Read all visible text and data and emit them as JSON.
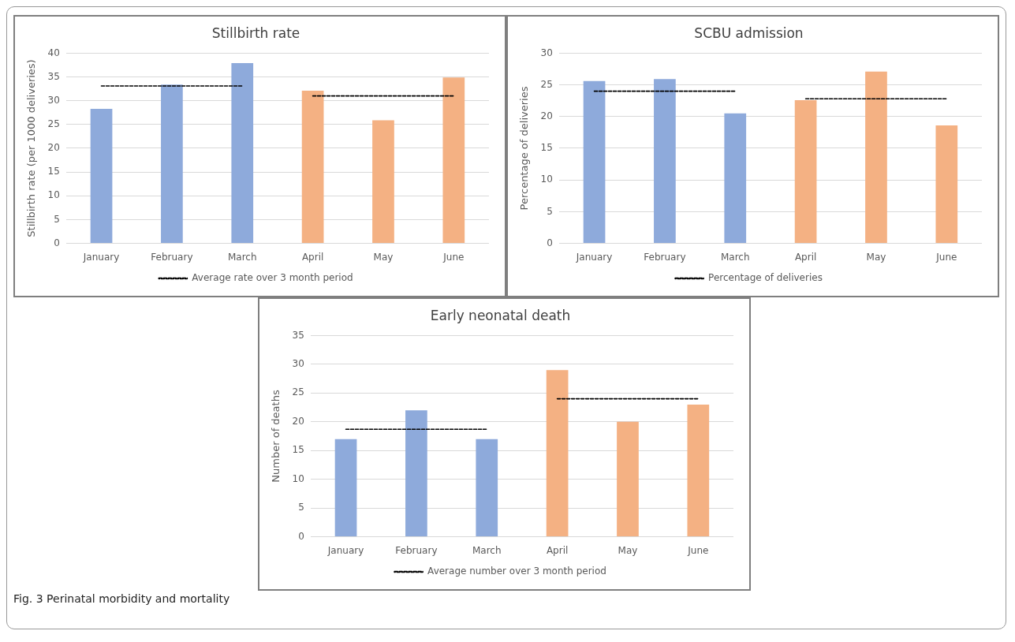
{
  "chart_data": [
    {
      "type": "bar",
      "title": "Stillbirth rate",
      "ylabel": "Stillbirth rate (per 1000 deliveries)",
      "categories": [
        "January",
        "February",
        "March",
        "April",
        "May",
        "June"
      ],
      "series": [
        {
          "colors": [
            "#8eaadb",
            "#8eaadb",
            "#8eaadb",
            "#f4b183",
            "#f4b183",
            "#f4b183"
          ],
          "values": [
            28.3,
            33.4,
            37.9,
            32.1,
            25.9,
            34.9
          ]
        },
        {
          "type": "line",
          "name": "Average rate over 3 month period",
          "color": "#000000",
          "line_style": "dashed",
          "marker": "none",
          "values": [
            33.1,
            33.1,
            33.1,
            null,
            null,
            null
          ]
        },
        {
          "type": "line",
          "color": "#000000",
          "line_style": "dashed",
          "marker": "none",
          "values": [
            null,
            null,
            null,
            31,
            31,
            31
          ]
        }
      ],
      "ylim": [
        0,
        40
      ],
      "yticks": [
        0,
        5,
        10,
        15,
        20,
        25,
        30,
        35,
        40
      ],
      "grid": "y",
      "legend": "bottom"
    },
    {
      "type": "bar",
      "title": "SCBU admission",
      "ylabel": "Percentage of deliveries",
      "categories": [
        "January",
        "February",
        "March",
        "April",
        "May",
        "June"
      ],
      "series": [
        {
          "colors": [
            "#8eaadb",
            "#8eaadb",
            "#8eaadb",
            "#f4b183",
            "#f4b183",
            "#f4b183"
          ],
          "values": [
            25.6,
            25.9,
            20.5,
            22.6,
            27.1,
            18.6
          ]
        },
        {
          "type": "line",
          "name": "Percentage of deliveries",
          "color": "#000000",
          "line_style": "dashed",
          "marker": "none",
          "values": [
            24,
            24,
            24,
            null,
            null,
            null
          ]
        },
        {
          "type": "line",
          "color": "#000000",
          "line_style": "dashed",
          "marker": "none",
          "values": [
            null,
            null,
            null,
            22.8,
            22.8,
            22.8
          ]
        }
      ],
      "ylim": [
        0,
        30
      ],
      "yticks": [
        0,
        5,
        10,
        15,
        20,
        25,
        30
      ],
      "grid": "y",
      "legend": "bottom"
    },
    {
      "type": "bar",
      "title": "Early neonatal death",
      "ylabel": "Number of deaths",
      "categories": [
        "January",
        "February",
        "March",
        "April",
        "May",
        "June"
      ],
      "series": [
        {
          "colors": [
            "#8eaadb",
            "#8eaadb",
            "#8eaadb",
            "#f4b183",
            "#f4b183",
            "#f4b183"
          ],
          "values": [
            17,
            22,
            17,
            29,
            20,
            23
          ]
        },
        {
          "type": "line",
          "name": "Average number over 3 month period",
          "color": "#000000",
          "line_style": "dashed",
          "marker": "none",
          "values": [
            18.7,
            18.7,
            18.7,
            null,
            null,
            null
          ]
        },
        {
          "type": "line",
          "color": "#000000",
          "line_style": "dashed",
          "marker": "none",
          "values": [
            null,
            null,
            null,
            24,
            24,
            24
          ]
        }
      ],
      "ylim": [
        0,
        35
      ],
      "yticks": [
        0,
        5,
        10,
        15,
        20,
        25,
        30,
        35
      ],
      "grid": "y",
      "legend": "bottom",
      "annotations": [
        "Fig. 3 Perinatal morbidity and mortality"
      ]
    }
  ]
}
